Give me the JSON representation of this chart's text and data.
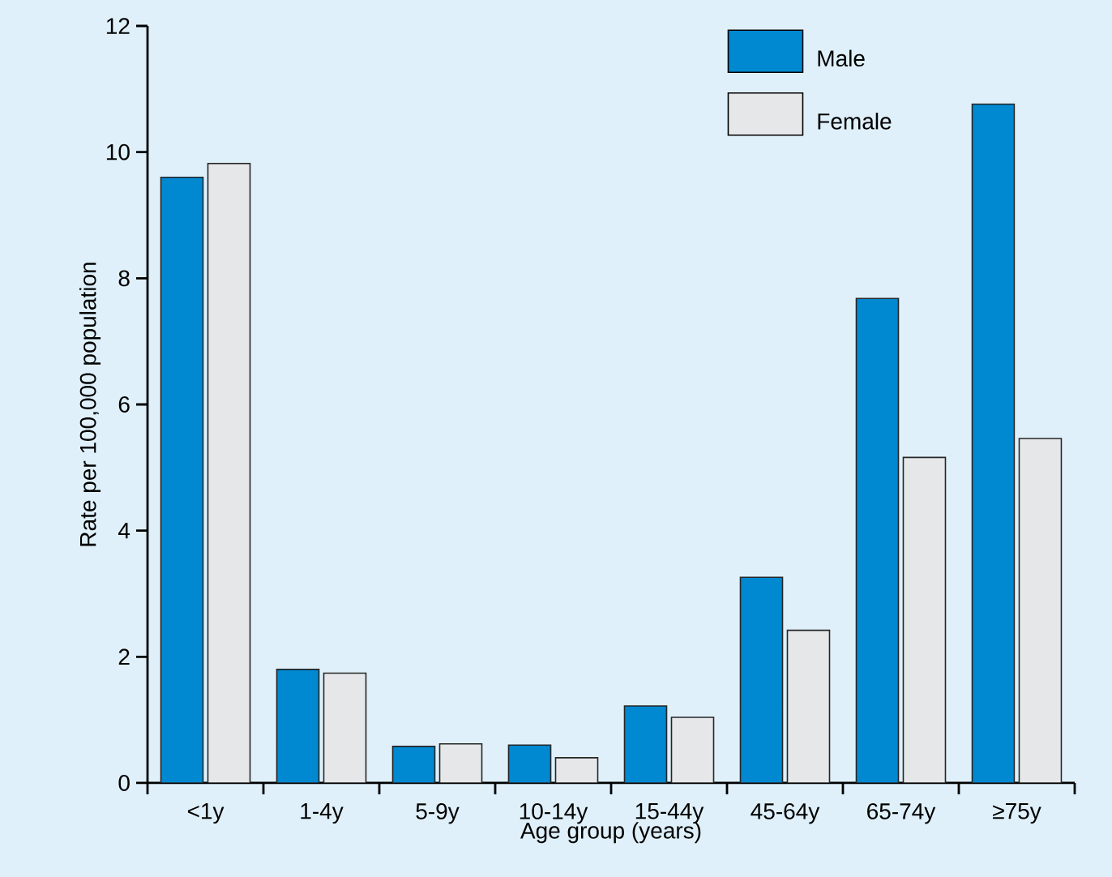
{
  "chart_data": {
    "type": "bar",
    "xlabel": "Age group (years)",
    "ylabel": "Rate per 100,000 population",
    "categories": [
      "<1y",
      "1-4y",
      "5-9y",
      "10-14y",
      "15-44y",
      "45-64y",
      "65-74y",
      "≥75y"
    ],
    "series": [
      {
        "name": "Male",
        "color": "#0088d1",
        "values": [
          9.6,
          1.8,
          0.58,
          0.6,
          1.22,
          3.26,
          7.68,
          10.76
        ]
      },
      {
        "name": "Female",
        "color": "#e6e7e9",
        "values": [
          9.82,
          1.74,
          0.62,
          0.4,
          1.04,
          2.42,
          5.16,
          5.46
        ]
      }
    ],
    "ylim": [
      0,
      12
    ],
    "yticks": [
      0,
      2,
      4,
      6,
      8,
      10,
      12
    ],
    "legend": "top right",
    "grid": false
  }
}
